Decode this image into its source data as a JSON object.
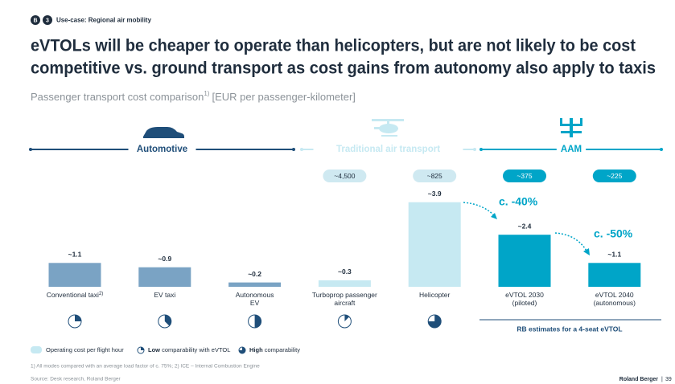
{
  "header": {
    "badges": [
      "B",
      "3"
    ],
    "label": "Use-case: Regional air mobility"
  },
  "chart_data": {
    "type": "bar",
    "title": [
      "eVTOLs will be cheaper to operate than helicopters, but are not likely to be cost",
      "competitive vs. ground transport as cost gains from autonomy also apply to taxis"
    ],
    "subtitle": "Passenger transport cost comparison",
    "subtitle_note": "1)",
    "subtitle_unit": "[EUR per passenger-kilometer]",
    "groups": [
      {
        "name": "Automotive",
        "color": "#1f4e79"
      },
      {
        "name": "Traditional air transport",
        "color": "#c6e9f2"
      },
      {
        "name": "AAM",
        "color": "#00a5c8"
      }
    ],
    "categories": [
      [
        "Conventional taxi"
      ],
      [
        "EV taxi"
      ],
      [
        "Autonomous",
        "EV"
      ],
      [
        "Turboprop passenger",
        "aircraft"
      ],
      [
        "Helicopter"
      ],
      [
        "eVTOL 2030",
        "(piloted)"
      ],
      [
        "eVTOL 2040",
        "(autonomous)"
      ]
    ],
    "category_note": "2)",
    "values": [
      1.1,
      0.9,
      0.2,
      0.3,
      3.9,
      2.4,
      1.1
    ],
    "value_labels": [
      "~1.1",
      "~0.9",
      "~0.2",
      "~0.3",
      "~3.9",
      "~2.4",
      "~1.1"
    ],
    "colors": [
      "#7aa3c4",
      "#7aa3c4",
      "#7aa3c4",
      "#c6e9f2",
      "#c6e9f2",
      "#00a5c8",
      "#00a5c8"
    ],
    "flight_hour_cost": {
      "name": "Operating cost per flight hour",
      "values": [
        null,
        null,
        null,
        4500,
        825,
        375,
        225
      ],
      "value_labels": [
        null,
        null,
        null,
        "~4,500",
        "~825",
        "~375",
        "~225"
      ]
    },
    "comparability": {
      "values": [
        0.25,
        0.375,
        0.5,
        0.125,
        0.75,
        null,
        null
      ],
      "low": "Low",
      "low_text": "comparability with eVTOL",
      "high": "High",
      "high_text": "comparability"
    },
    "annotations": [
      "c. -40%",
      "c. -50%"
    ],
    "bracket_label": "RB estimates for a 4-seat eVTOL"
  },
  "footnote": "1) All modes compared with an average load factor of c. 75%; 2) ICE – Internal Combustion Engine",
  "source": "Source: Desk research, Roland Berger",
  "brand": "Roland Berger",
  "page": "39"
}
